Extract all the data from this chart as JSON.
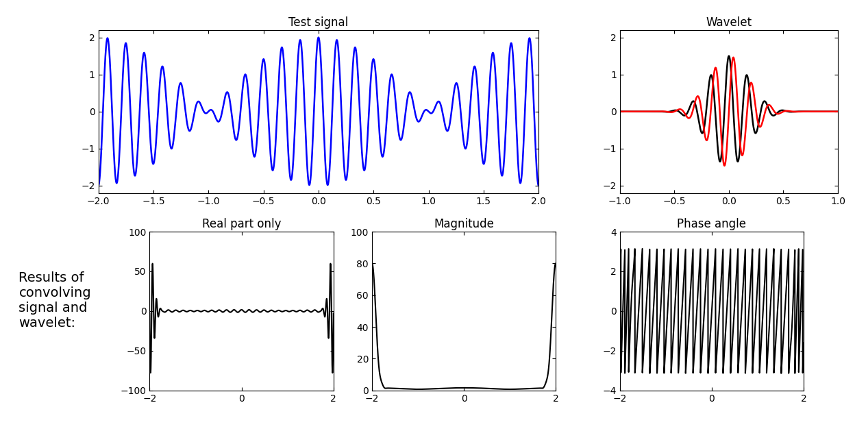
{
  "title_test": "Test signal",
  "title_wavelet": "Wavelet",
  "title_real": "Real part only",
  "title_mag": "Magnitude",
  "title_phase": "Phase angle",
  "label_results": "Results of\nconvolving\nsignal and\nwavelet:",
  "test_xlim": [
    -2,
    2
  ],
  "test_ylim": [
    -2.2,
    2.2
  ],
  "wavelet_xlim": [
    -1,
    1
  ],
  "wavelet_ylim": [
    -2.2,
    2.2
  ],
  "real_xlim": [
    -2,
    2
  ],
  "real_ylim": [
    -100,
    100
  ],
  "mag_xlim": [
    -2,
    2
  ],
  "mag_ylim": [
    0,
    100
  ],
  "phase_xlim": [
    -2,
    2
  ],
  "phase_ylim": [
    -4,
    4
  ],
  "signal_color": "#0000FF",
  "wavelet_real_color": "#000000",
  "wavelet_imag_color": "#FF0000",
  "result_color": "#000000",
  "linewidth_signal": 1.8,
  "linewidth_wavelet": 1.8,
  "linewidth_result": 1.5,
  "title_fontsize": 12,
  "label_fontsize": 14,
  "tick_fontsize": 10
}
